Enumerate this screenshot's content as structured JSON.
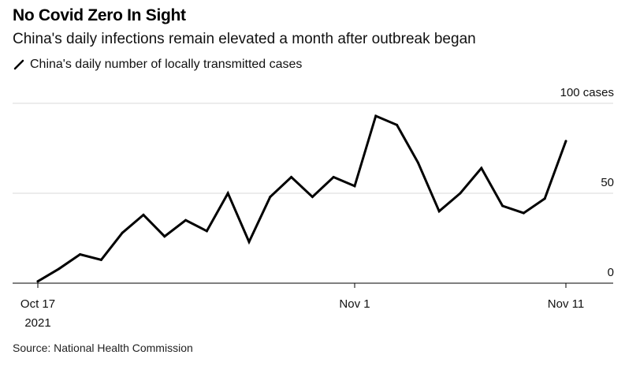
{
  "title": "No Covid Zero In Sight",
  "subtitle": "China's daily infections remain elevated a month after outbreak began",
  "source": "Source: National Health Commission",
  "colors": {
    "line": "#000000",
    "grid": "#d9d9d9",
    "baseline": "#000000"
  },
  "chart_data": {
    "type": "line",
    "series": [
      {
        "name": "China's daily number of locally transmitted cases",
        "x": [
          "2021-10-17",
          "2021-10-18",
          "2021-10-19",
          "2021-10-20",
          "2021-10-21",
          "2021-10-22",
          "2021-10-23",
          "2021-10-24",
          "2021-10-25",
          "2021-10-26",
          "2021-10-27",
          "2021-10-28",
          "2021-10-29",
          "2021-10-30",
          "2021-10-31",
          "2021-11-01",
          "2021-11-02",
          "2021-11-03",
          "2021-11-04",
          "2021-11-05",
          "2021-11-06",
          "2021-11-07",
          "2021-11-08",
          "2021-11-09",
          "2021-11-10",
          "2021-11-11"
        ],
        "values": [
          1,
          8,
          16,
          13,
          28,
          38,
          26,
          35,
          29,
          50,
          23,
          48,
          59,
          48,
          59,
          54,
          93,
          88,
          67,
          40,
          50,
          64,
          43,
          39,
          47,
          79
        ]
      }
    ],
    "ylim": [
      0,
      100
    ],
    "yticks": [
      {
        "value": 0,
        "label": "0"
      },
      {
        "value": 50,
        "label": "50"
      },
      {
        "value": 100,
        "label": "100 cases"
      }
    ],
    "xticks": [
      {
        "x": "2021-10-17",
        "label": "Oct 17",
        "sublabel": "2021"
      },
      {
        "x": "2021-11-01",
        "label": "Nov 1",
        "sublabel": ""
      },
      {
        "x": "2021-11-11",
        "label": "Nov 11",
        "sublabel": ""
      }
    ],
    "grid": true,
    "legend": "top-left"
  }
}
